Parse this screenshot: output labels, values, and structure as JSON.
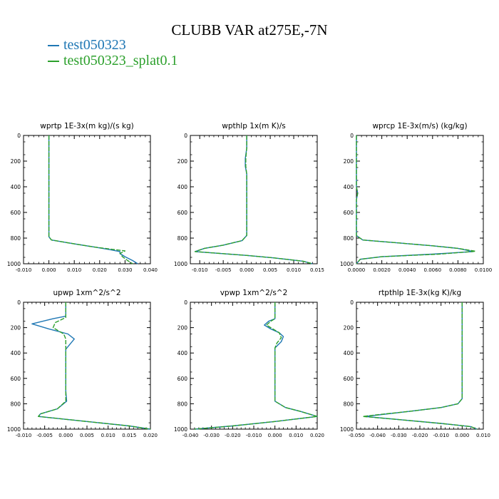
{
  "title": "CLUBB VAR at275E,-7N",
  "legend": [
    {
      "name": "test050323",
      "color": "#1f77b4"
    },
    {
      "name": "test050323_splat0.1",
      "color": "#2ca02c"
    }
  ],
  "chart_data": [
    {
      "type": "line",
      "title": "wprtp  1E-3x(m kg)/(s kg)",
      "xlim": [
        -0.01,
        0.04
      ],
      "ylim": [
        1000,
        0
      ],
      "xticks": [
        "-0.010",
        "0.000",
        "0.010",
        "0.020",
        "0.030",
        "0.040"
      ],
      "yticks": [
        "0",
        "200",
        "400",
        "600",
        "800",
        "1000"
      ],
      "series": [
        {
          "name": "test050323",
          "values": [
            [
              0.0,
              0
            ],
            [
              0.0,
              200
            ],
            [
              0.0,
              400
            ],
            [
              0.0,
              600
            ],
            [
              0.0,
              790
            ],
            [
              0.001,
              815
            ],
            [
              0.01,
              845
            ],
            [
              0.018,
              870
            ],
            [
              0.024,
              890
            ],
            [
              0.028,
              905
            ],
            [
              0.028,
              920
            ],
            [
              0.03,
              945
            ],
            [
              0.033,
              975
            ],
            [
              0.035,
              1000
            ]
          ]
        },
        {
          "name": "test050323_splat0.1",
          "values": [
            [
              0.0,
              0
            ],
            [
              0.0,
              200
            ],
            [
              0.0,
              400
            ],
            [
              0.0,
              600
            ],
            [
              0.0,
              790
            ],
            [
              0.001,
              815
            ],
            [
              0.01,
              845
            ],
            [
              0.018,
              870
            ],
            [
              0.025,
              888
            ],
            [
              0.03,
              900
            ],
            [
              0.028,
              920
            ],
            [
              0.029,
              945
            ],
            [
              0.031,
              975
            ],
            [
              0.033,
              1000
            ]
          ]
        }
      ]
    },
    {
      "type": "line",
      "title": "wpthlp  1x(m K)/s",
      "xlim": [
        -0.012,
        0.015
      ],
      "ylim": [
        1000,
        0
      ],
      "xticks": [
        "-0.010",
        "-0.005",
        "0.000",
        "0.005",
        "0.010",
        "0.015"
      ],
      "yticks": [
        "0",
        "200",
        "400",
        "600",
        "800",
        "1000"
      ],
      "series": [
        {
          "name": "test050323",
          "values": [
            [
              0.0,
              0
            ],
            [
              0.0,
              100
            ],
            [
              -0.0003,
              180
            ],
            [
              -0.0003,
              240
            ],
            [
              0.0,
              300
            ],
            [
              0.0,
              600
            ],
            [
              0.0,
              780
            ],
            [
              -0.001,
              820
            ],
            [
              -0.005,
              855
            ],
            [
              -0.009,
              880
            ],
            [
              -0.011,
              905
            ],
            [
              0.0,
              935
            ],
            [
              0.006,
              955
            ],
            [
              0.012,
              980
            ],
            [
              0.014,
              1000
            ]
          ]
        },
        {
          "name": "test050323_splat0.1",
          "values": [
            [
              0.0,
              0
            ],
            [
              0.0,
              100
            ],
            [
              -0.0002,
              180
            ],
            [
              -0.0002,
              240
            ],
            [
              0.0,
              300
            ],
            [
              0.0,
              600
            ],
            [
              0.0,
              780
            ],
            [
              -0.001,
              820
            ],
            [
              -0.005,
              855
            ],
            [
              -0.009,
              880
            ],
            [
              -0.011,
              905
            ],
            [
              0.0,
              935
            ],
            [
              0.006,
              955
            ],
            [
              0.012,
              980
            ],
            [
              0.014,
              1000
            ]
          ]
        }
      ]
    },
    {
      "type": "line",
      "title": "wprcp  1E-3x(m/s) (kg/kg)",
      "xlim": [
        0.0,
        0.01
      ],
      "ylim": [
        1000,
        0
      ],
      "xticks": [
        "0.0000",
        "0.0020",
        "0.0040",
        "0.0060",
        "0.0080",
        "0.0100"
      ],
      "yticks": [
        "0",
        "200",
        "400",
        "600",
        "800",
        "1000"
      ],
      "series": [
        {
          "name": "test050323",
          "values": [
            [
              0.0,
              0
            ],
            [
              0.0,
              400
            ],
            [
              0.0001,
              450
            ],
            [
              0.0,
              500
            ],
            [
              0.0,
              780
            ],
            [
              0.0005,
              815
            ],
            [
              0.003,
              835
            ],
            [
              0.006,
              860
            ],
            [
              0.008,
              880
            ],
            [
              0.0092,
              905
            ],
            [
              0.006,
              925
            ],
            [
              0.002,
              945
            ],
            [
              0.0003,
              965
            ],
            [
              0.0,
              1000
            ]
          ]
        },
        {
          "name": "test050323_splat0.1",
          "values": [
            [
              0.0,
              0
            ],
            [
              0.0,
              400
            ],
            [
              0.0001,
              450
            ],
            [
              0.0,
              500
            ],
            [
              0.0,
              780
            ],
            [
              0.0005,
              815
            ],
            [
              0.003,
              835
            ],
            [
              0.006,
              860
            ],
            [
              0.008,
              880
            ],
            [
              0.0094,
              903
            ],
            [
              0.0065,
              925
            ],
            [
              0.002,
              945
            ],
            [
              0.0003,
              965
            ],
            [
              0.0,
              1000
            ]
          ]
        }
      ]
    },
    {
      "type": "line",
      "title": "upwp  1xm^2/s^2",
      "xlim": [
        -0.01,
        0.02
      ],
      "ylim": [
        1000,
        0
      ],
      "xticks": [
        "-0.010",
        "-0.005",
        "0.000",
        "0.005",
        "0.010",
        "0.015",
        "0.020"
      ],
      "yticks": [
        "0",
        "200",
        "400",
        "600",
        "800",
        "1000"
      ],
      "series": [
        {
          "name": "test050323",
          "values": [
            [
              0.0,
              0
            ],
            [
              0.0,
              110
            ],
            [
              -0.003,
              130
            ],
            [
              -0.008,
              170
            ],
            [
              -0.004,
              210
            ],
            [
              0.0005,
              250
            ],
            [
              0.002,
              290
            ],
            [
              0.001,
              330
            ],
            [
              0.0,
              370
            ],
            [
              0.0,
              500
            ],
            [
              0.0,
              700
            ],
            [
              0.0002,
              780
            ],
            [
              -0.002,
              840
            ],
            [
              -0.006,
              880
            ],
            [
              -0.0065,
              900
            ],
            [
              0.005,
              940
            ],
            [
              0.015,
              975
            ],
            [
              0.02,
              1000
            ]
          ]
        },
        {
          "name": "test050323_splat0.1",
          "values": [
            [
              0.0,
              0
            ],
            [
              0.0,
              120
            ],
            [
              -0.0025,
              160
            ],
            [
              -0.003,
              200
            ],
            [
              -0.0005,
              250
            ],
            [
              0.0,
              290
            ],
            [
              0.0,
              330
            ],
            [
              0.0,
              370
            ],
            [
              0.0,
              500
            ],
            [
              0.0,
              700
            ],
            [
              0.0,
              780
            ],
            [
              -0.002,
              840
            ],
            [
              -0.006,
              880
            ],
            [
              -0.0065,
              900
            ],
            [
              0.005,
              940
            ],
            [
              0.015,
              975
            ],
            [
              0.02,
              1000
            ]
          ]
        }
      ]
    },
    {
      "type": "line",
      "title": "vpwp  1xm^2/s^2",
      "xlim": [
        -0.04,
        0.02
      ],
      "ylim": [
        1000,
        0
      ],
      "xticks": [
        "-0.040",
        "-0.030",
        "-0.020",
        "-0.010",
        "0.000",
        "0.010",
        "0.020"
      ],
      "yticks": [
        "0",
        "200",
        "400",
        "600",
        "800",
        "1000"
      ],
      "series": [
        {
          "name": "test050323",
          "values": [
            [
              0.0,
              0
            ],
            [
              0.0,
              130
            ],
            [
              -0.003,
              150
            ],
            [
              -0.005,
              180
            ],
            [
              -0.002,
              210
            ],
            [
              0.002,
              240
            ],
            [
              0.004,
              270
            ],
            [
              0.003,
              310
            ],
            [
              0.0,
              360
            ],
            [
              0.0,
              600
            ],
            [
              0.0,
              780
            ],
            [
              0.005,
              830
            ],
            [
              0.012,
              860
            ],
            [
              0.02,
              900
            ],
            [
              0.0,
              940
            ],
            [
              -0.02,
              975
            ],
            [
              -0.038,
              1000
            ]
          ]
        },
        {
          "name": "test050323_splat0.1",
          "values": [
            [
              0.0,
              0
            ],
            [
              0.0,
              130
            ],
            [
              -0.002,
              150
            ],
            [
              -0.004,
              180
            ],
            [
              -0.001,
              210
            ],
            [
              0.002,
              240
            ],
            [
              0.003,
              280
            ],
            [
              0.001,
              320
            ],
            [
              0.0,
              360
            ],
            [
              0.0,
              600
            ],
            [
              0.0,
              780
            ],
            [
              0.005,
              830
            ],
            [
              0.012,
              860
            ],
            [
              0.02,
              900
            ],
            [
              0.0,
              940
            ],
            [
              -0.02,
              975
            ],
            [
              -0.038,
              1000
            ]
          ]
        }
      ]
    },
    {
      "type": "line",
      "title": "rtpthlp  1E-3x(kg K)/kg",
      "xlim": [
        -0.05,
        0.01
      ],
      "ylim": [
        1000,
        0
      ],
      "xticks": [
        "-0.050",
        "-0.040",
        "-0.030",
        "-0.020",
        "-0.010",
        "0.000",
        "0.010"
      ],
      "yticks": [
        "0",
        "200",
        "400",
        "600",
        "800",
        "1000"
      ],
      "series": [
        {
          "name": "test050323",
          "values": [
            [
              0.0,
              0
            ],
            [
              0.0,
              300
            ],
            [
              0.0,
              600
            ],
            [
              0.0,
              760
            ],
            [
              -0.002,
              800
            ],
            [
              -0.01,
              830
            ],
            [
              -0.025,
              860
            ],
            [
              -0.038,
              885
            ],
            [
              -0.046,
              900
            ],
            [
              -0.03,
              925
            ],
            [
              -0.01,
              955
            ],
            [
              0.004,
              980
            ],
            [
              0.007,
              1000
            ]
          ]
        },
        {
          "name": "test050323_splat0.1",
          "values": [
            [
              0.0,
              0
            ],
            [
              0.0,
              300
            ],
            [
              0.0,
              600
            ],
            [
              0.0,
              760
            ],
            [
              -0.002,
              800
            ],
            [
              -0.01,
              830
            ],
            [
              -0.025,
              860
            ],
            [
              -0.039,
              885
            ],
            [
              -0.047,
              900
            ],
            [
              -0.03,
              925
            ],
            [
              -0.01,
              955
            ],
            [
              0.004,
              980
            ],
            [
              0.007,
              1000
            ]
          ]
        }
      ]
    }
  ]
}
